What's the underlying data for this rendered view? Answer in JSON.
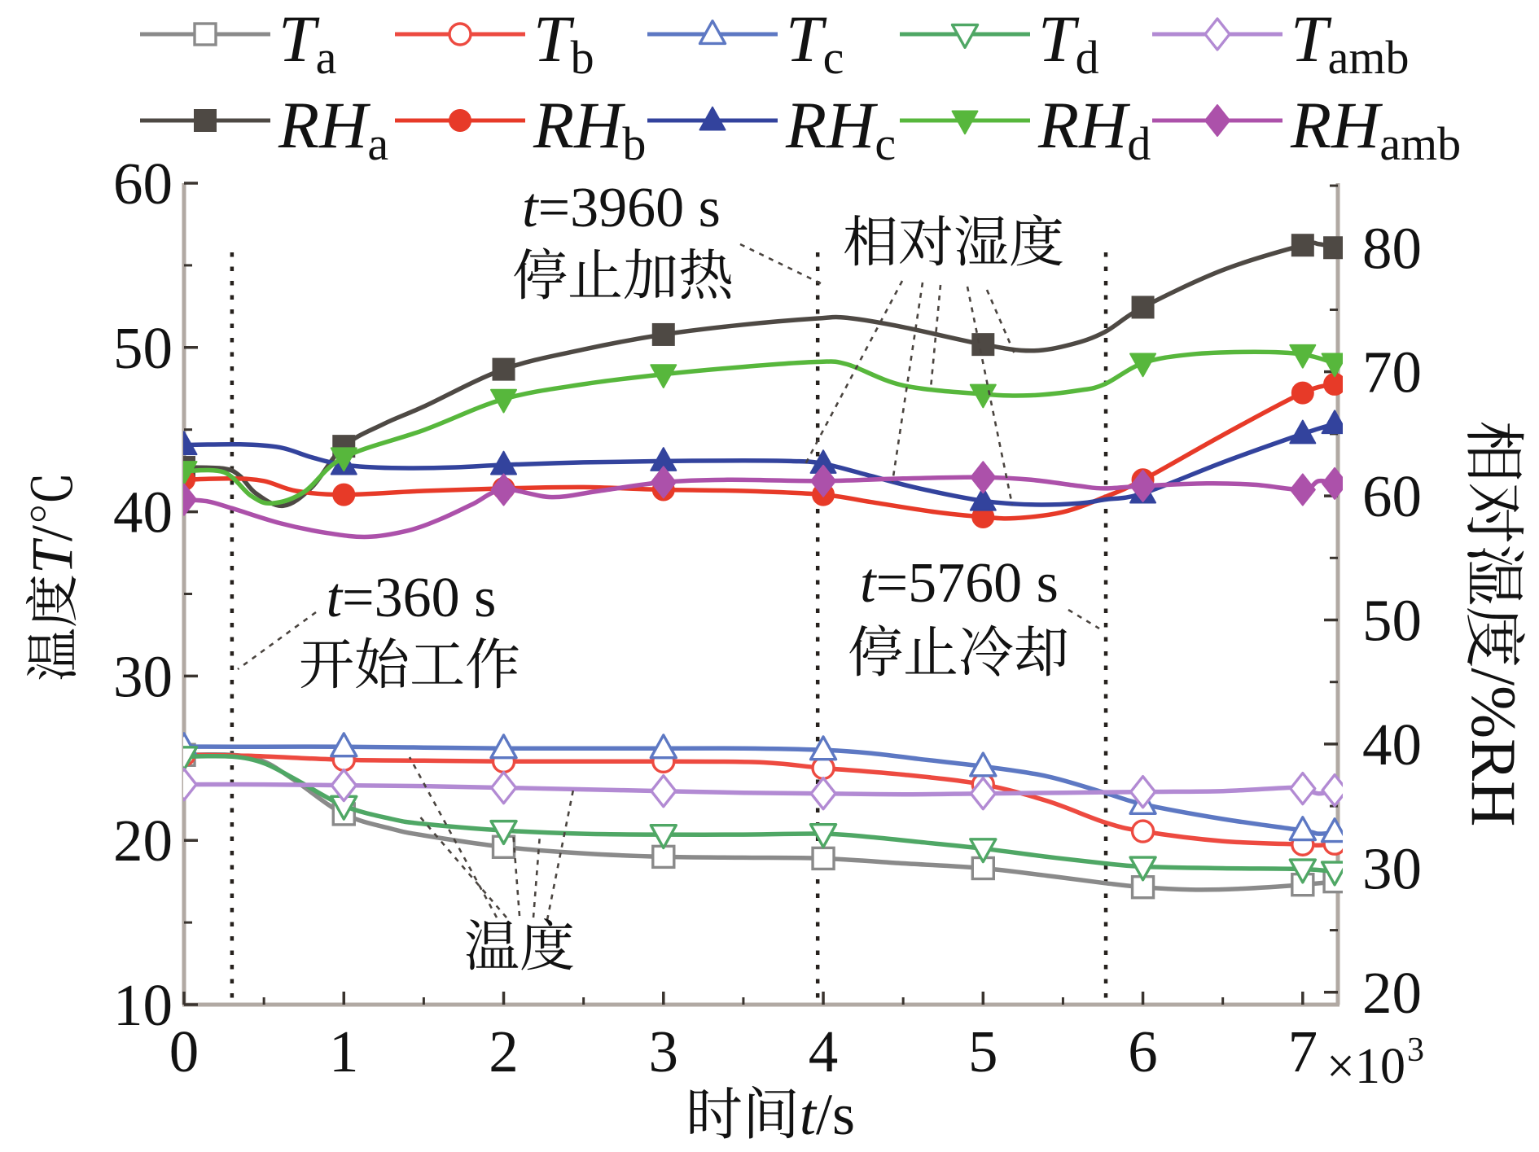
{
  "figure": {
    "type": "dual-axis line chart",
    "background": "#ffffff",
    "description": "Temperature and relative humidity versus time"
  },
  "legend": {
    "rows": [
      {
        "entries": [
          {
            "id": "Ta",
            "main": "T",
            "sub": "a",
            "marker": "square-open",
            "color": "#8a8a8a"
          },
          {
            "id": "Tb",
            "main": "T",
            "sub": "b",
            "marker": "circle-open",
            "color": "#ed4a40"
          },
          {
            "id": "Tc",
            "main": "T",
            "sub": "c",
            "marker": "triangle-up-open",
            "color": "#5d78c3"
          },
          {
            "id": "Td",
            "main": "T",
            "sub": "d",
            "marker": "triangle-down-open",
            "color": "#4fa765"
          },
          {
            "id": "Tamb",
            "main": "T",
            "sub": "amb",
            "marker": "diamond-open",
            "color": "#b28ad3"
          }
        ]
      },
      {
        "entries": [
          {
            "id": "RHa",
            "main": "RH",
            "sub": "a",
            "marker": "square-filled",
            "color": "#4e4944"
          },
          {
            "id": "RHb",
            "main": "RH",
            "sub": "b",
            "marker": "circle-filled",
            "color": "#e73a28"
          },
          {
            "id": "RHc",
            "main": "RH",
            "sub": "c",
            "marker": "triangle-up-filled",
            "color": "#33439d"
          },
          {
            "id": "RHd",
            "main": "RH",
            "sub": "d",
            "marker": "triangle-down-filled",
            "color": "#57b73c"
          },
          {
            "id": "RHamb",
            "main": "RH",
            "sub": "amb",
            "marker": "diamond-filled",
            "color": "#ac51aa"
          }
        ]
      }
    ]
  },
  "axes": {
    "x": {
      "title_cjk": "时间",
      "title_italic": "t",
      "title_unit": "/s",
      "ticks": [
        "0",
        "1",
        "2",
        "3",
        "4",
        "5",
        "6",
        "7"
      ],
      "multiplier": "×10",
      "multiplier_exp": "3",
      "range_seconds": [
        0,
        7220
      ]
    },
    "left": {
      "title_cjk": "温度",
      "title_italic": "T",
      "title_unit": "/℃",
      "ticks": [
        "10",
        "20",
        "30",
        "40",
        "50",
        "60"
      ],
      "range": [
        10,
        60
      ]
    },
    "right": {
      "title_cjk": "相对湿度",
      "title_unit": "/%RH",
      "ticks": [
        "20",
        "30",
        "40",
        "50",
        "60",
        "70",
        "80"
      ],
      "range": [
        19.0,
        85.2
      ]
    }
  },
  "annotations": [
    {
      "id": "start-work",
      "lines": [
        "t=360 s",
        "开始工作"
      ]
    },
    {
      "id": "stop-heating",
      "lines": [
        "t=3960 s",
        "停止加热"
      ]
    },
    {
      "id": "stop-cooling",
      "lines": [
        "t=5760 s",
        "停止冷却"
      ]
    },
    {
      "id": "humidity-label",
      "lines": [
        "相对湿度"
      ]
    },
    {
      "id": "temperature-label",
      "lines": [
        "温度"
      ]
    }
  ],
  "guide_lines": [
    {
      "label_t": 360,
      "plot_t": 300
    },
    {
      "label_t": 3960,
      "plot_t": 3965
    },
    {
      "label_t": 5760,
      "plot_t": 5768
    }
  ],
  "chart_data": {
    "type": "line",
    "x_label": "时间t/s",
    "x_unit": "s",
    "y_left_label": "温度T/℃",
    "y_right_label": "相对湿度/%RH",
    "x_ticks_seconds": [
      0,
      1000,
      2000,
      3000,
      4000,
      5000,
      6000,
      7000
    ],
    "marker_interval_seconds": 1000,
    "series": [
      {
        "id": "Ta",
        "name": "T_a",
        "axis": "left",
        "unit": "°C",
        "color": "#8a8a8a",
        "marker": "square-open",
        "points": [
          [
            0,
            25.2
          ],
          [
            300,
            25.2
          ],
          [
            500,
            24.8
          ],
          [
            700,
            23.6
          ],
          [
            1000,
            21.6
          ],
          [
            1300,
            20.7
          ],
          [
            1500,
            20.3
          ],
          [
            2000,
            19.6
          ],
          [
            2500,
            19.2
          ],
          [
            3000,
            19.0
          ],
          [
            3500,
            18.95
          ],
          [
            4000,
            18.9
          ],
          [
            4500,
            18.6
          ],
          [
            5000,
            18.3
          ],
          [
            5400,
            17.85
          ],
          [
            5760,
            17.4
          ],
          [
            6000,
            17.15
          ],
          [
            6300,
            17.0
          ],
          [
            6600,
            17.05
          ],
          [
            7000,
            17.3
          ],
          [
            7200,
            17.5
          ]
        ]
      },
      {
        "id": "Tb",
        "name": "T_b",
        "axis": "left",
        "unit": "°C",
        "color": "#ed4a40",
        "marker": "circle-open",
        "points": [
          [
            0,
            25.2
          ],
          [
            400,
            25.15
          ],
          [
            1000,
            24.9
          ],
          [
            1500,
            24.85
          ],
          [
            2000,
            24.8
          ],
          [
            2500,
            24.8
          ],
          [
            3000,
            24.8
          ],
          [
            3600,
            24.75
          ],
          [
            4000,
            24.4
          ],
          [
            4500,
            24.0
          ],
          [
            5000,
            23.4
          ],
          [
            5400,
            22.4
          ],
          [
            5760,
            21.1
          ],
          [
            6000,
            20.55
          ],
          [
            6500,
            19.95
          ],
          [
            7000,
            19.75
          ],
          [
            7100,
            19.7
          ],
          [
            7200,
            19.8
          ]
        ]
      },
      {
        "id": "Tc",
        "name": "T_c",
        "axis": "left",
        "unit": "°C",
        "color": "#5d78c3",
        "marker": "triangle-up-open",
        "points": [
          [
            0,
            25.7
          ],
          [
            500,
            25.7
          ],
          [
            1000,
            25.7
          ],
          [
            1500,
            25.65
          ],
          [
            2000,
            25.6
          ],
          [
            3000,
            25.6
          ],
          [
            3500,
            25.6
          ],
          [
            4000,
            25.5
          ],
          [
            4300,
            25.3
          ],
          [
            4600,
            24.95
          ],
          [
            5000,
            24.5
          ],
          [
            5400,
            23.9
          ],
          [
            5760,
            22.9
          ],
          [
            6000,
            22.2
          ],
          [
            6500,
            21.3
          ],
          [
            7000,
            20.6
          ],
          [
            7100,
            20.4
          ],
          [
            7200,
            20.5
          ]
        ]
      },
      {
        "id": "Td",
        "name": "T_d",
        "axis": "left",
        "unit": "°C",
        "color": "#4fa765",
        "marker": "triangle-down-open",
        "points": [
          [
            0,
            25.1
          ],
          [
            300,
            25.1
          ],
          [
            500,
            24.7
          ],
          [
            700,
            23.7
          ],
          [
            1000,
            22.1
          ],
          [
            1300,
            21.3
          ],
          [
            1500,
            21.0
          ],
          [
            2000,
            20.6
          ],
          [
            2500,
            20.4
          ],
          [
            3000,
            20.35
          ],
          [
            3500,
            20.35
          ],
          [
            4000,
            20.4
          ],
          [
            4300,
            20.2
          ],
          [
            4600,
            19.9
          ],
          [
            5000,
            19.5
          ],
          [
            5400,
            19.0
          ],
          [
            5760,
            18.6
          ],
          [
            6000,
            18.4
          ],
          [
            6500,
            18.3
          ],
          [
            7000,
            18.25
          ],
          [
            7200,
            18.1
          ]
        ]
      },
      {
        "id": "Tamb",
        "name": "T_amb",
        "axis": "left",
        "unit": "°C",
        "color": "#b28ad3",
        "marker": "diamond-open",
        "points": [
          [
            0,
            23.4
          ],
          [
            500,
            23.4
          ],
          [
            1000,
            23.35
          ],
          [
            1500,
            23.3
          ],
          [
            2000,
            23.2
          ],
          [
            2500,
            23.1
          ],
          [
            3000,
            23.0
          ],
          [
            3500,
            22.9
          ],
          [
            4000,
            22.85
          ],
          [
            4500,
            22.8
          ],
          [
            5000,
            22.85
          ],
          [
            5500,
            22.9
          ],
          [
            6000,
            22.95
          ],
          [
            6500,
            23.0
          ],
          [
            6900,
            23.2
          ],
          [
            7000,
            23.15
          ],
          [
            7100,
            22.85
          ],
          [
            7200,
            23.05
          ]
        ]
      },
      {
        "id": "RHa",
        "name": "RH_a",
        "axis": "right",
        "unit": "%RH",
        "color": "#4e4944",
        "marker": "square-filled",
        "points": [
          [
            0,
            62.3
          ],
          [
            250,
            62.2
          ],
          [
            350,
            61.6
          ],
          [
            450,
            60.2
          ],
          [
            620,
            59.2
          ],
          [
            800,
            60.7
          ],
          [
            1000,
            64.0
          ],
          [
            1250,
            65.8
          ],
          [
            1500,
            67.2
          ],
          [
            2000,
            70.2
          ],
          [
            2500,
            71.8
          ],
          [
            3000,
            73.0
          ],
          [
            3500,
            73.8
          ],
          [
            3960,
            74.3
          ],
          [
            4150,
            74.35
          ],
          [
            4500,
            73.6
          ],
          [
            5000,
            72.2
          ],
          [
            5300,
            71.7
          ],
          [
            5550,
            72.2
          ],
          [
            5760,
            73.2
          ],
          [
            6000,
            75.2
          ],
          [
            6500,
            78.2
          ],
          [
            7000,
            80.2
          ],
          [
            7100,
            80.3
          ],
          [
            7200,
            80.0
          ]
        ]
      },
      {
        "id": "RHb",
        "name": "RH_b",
        "axis": "right",
        "unit": "%RH",
        "color": "#e73a28",
        "marker": "circle-filled",
        "points": [
          [
            0,
            61.3
          ],
          [
            300,
            61.4
          ],
          [
            500,
            61.2
          ],
          [
            700,
            60.4
          ],
          [
            1000,
            60.1
          ],
          [
            1500,
            60.4
          ],
          [
            2000,
            60.6
          ],
          [
            2500,
            60.7
          ],
          [
            3000,
            60.5
          ],
          [
            3500,
            60.4
          ],
          [
            4000,
            60.1
          ],
          [
            4300,
            59.5
          ],
          [
            4700,
            58.7
          ],
          [
            5000,
            58.3
          ],
          [
            5200,
            58.2
          ],
          [
            5500,
            58.7
          ],
          [
            5760,
            59.9
          ],
          [
            6000,
            61.3
          ],
          [
            6500,
            64.9
          ],
          [
            7000,
            68.3
          ],
          [
            7200,
            69.0
          ]
        ]
      },
      {
        "id": "RHc",
        "name": "RH_c",
        "axis": "right",
        "unit": "%RH",
        "color": "#33439d",
        "marker": "triangle-up-filled",
        "points": [
          [
            0,
            64.1
          ],
          [
            350,
            64.15
          ],
          [
            600,
            63.9
          ],
          [
            800,
            63.1
          ],
          [
            1000,
            62.5
          ],
          [
            1300,
            62.25
          ],
          [
            1700,
            62.3
          ],
          [
            2000,
            62.5
          ],
          [
            2500,
            62.7
          ],
          [
            3000,
            62.8
          ],
          [
            3500,
            62.85
          ],
          [
            3800,
            62.8
          ],
          [
            4000,
            62.6
          ],
          [
            4300,
            61.6
          ],
          [
            4600,
            60.6
          ],
          [
            5000,
            59.6
          ],
          [
            5300,
            59.3
          ],
          [
            5600,
            59.4
          ],
          [
            5760,
            59.7
          ],
          [
            6000,
            60.2
          ],
          [
            6500,
            62.7
          ],
          [
            7000,
            65.0
          ],
          [
            7200,
            65.8
          ]
        ]
      },
      {
        "id": "RHd",
        "name": "RH_d",
        "axis": "right",
        "unit": "%RH",
        "color": "#57b73c",
        "marker": "triangle-down-filled",
        "points": [
          [
            0,
            62.0
          ],
          [
            250,
            61.9
          ],
          [
            420,
            60.0
          ],
          [
            550,
            59.4
          ],
          [
            750,
            60.3
          ],
          [
            1000,
            63.1
          ],
          [
            1500,
            65.3
          ],
          [
            2000,
            67.8
          ],
          [
            2500,
            69.0
          ],
          [
            3000,
            69.8
          ],
          [
            3500,
            70.4
          ],
          [
            3960,
            70.8
          ],
          [
            4150,
            70.6
          ],
          [
            4500,
            68.9
          ],
          [
            5000,
            68.2
          ],
          [
            5300,
            68.1
          ],
          [
            5600,
            68.5
          ],
          [
            5760,
            69.0
          ],
          [
            6000,
            70.7
          ],
          [
            6300,
            71.4
          ],
          [
            6700,
            71.6
          ],
          [
            7000,
            71.4
          ],
          [
            7200,
            70.7
          ]
        ]
      },
      {
        "id": "RHamb",
        "name": "RH_amb",
        "axis": "right",
        "unit": "%RH",
        "color": "#ac51aa",
        "marker": "diamond-filled",
        "points": [
          [
            0,
            59.7
          ],
          [
            150,
            59.55
          ],
          [
            300,
            59.0
          ],
          [
            600,
            57.8
          ],
          [
            900,
            57.0
          ],
          [
            1150,
            56.7
          ],
          [
            1400,
            57.2
          ],
          [
            1600,
            58.1
          ],
          [
            1800,
            59.3
          ],
          [
            2000,
            60.5
          ],
          [
            2300,
            59.9
          ],
          [
            2600,
            60.4
          ],
          [
            3000,
            61.1
          ],
          [
            3400,
            61.3
          ],
          [
            4000,
            61.2
          ],
          [
            4500,
            61.4
          ],
          [
            5000,
            61.5
          ],
          [
            5300,
            61.3
          ],
          [
            5600,
            60.8
          ],
          [
            5760,
            60.6
          ],
          [
            6000,
            60.8
          ],
          [
            6400,
            61.0
          ],
          [
            6700,
            60.9
          ],
          [
            7000,
            60.5
          ],
          [
            7100,
            61.2
          ],
          [
            7200,
            61.0
          ]
        ]
      }
    ]
  }
}
